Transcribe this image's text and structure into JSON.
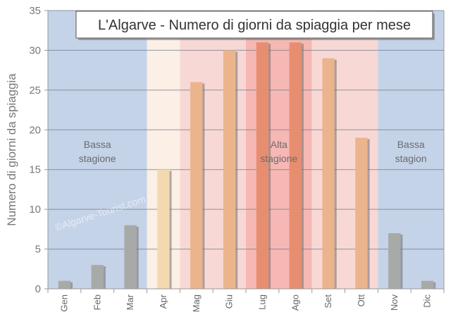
{
  "chart_data": {
    "type": "bar",
    "title": "L'Algarve - Numero di giorni da spiaggia per mese",
    "ylabel": "Numero di giorni da spiaggia",
    "xlabel": "",
    "ylim": [
      0,
      35
    ],
    "yticks": [
      0,
      5,
      10,
      15,
      20,
      25,
      30,
      35
    ],
    "grid": true,
    "categories": [
      "Gen",
      "Feb",
      "Mar",
      "Apr",
      "Mag",
      "Giu",
      "Lug",
      "Ago",
      "Set",
      "Ott",
      "Nov",
      "Dic"
    ],
    "values": [
      1,
      3,
      8,
      15,
      26,
      30,
      31,
      31,
      29,
      19,
      7,
      1
    ],
    "bar_colors": [
      "#a8aaa8",
      "#a8aaa8",
      "#a8aaa8",
      "#f2d9b0",
      "#ebb48c",
      "#ebb48c",
      "#e88e70",
      "#e88e70",
      "#ebb48c",
      "#ebb48c",
      "#a8aaa8",
      "#a8aaa8"
    ],
    "regions": [
      {
        "from": 0,
        "to": 3,
        "color": "#c5d3e8",
        "label": [
          "Bassa",
          "stagione"
        ]
      },
      {
        "from": 3,
        "to": 4,
        "color": "#fbefe6",
        "label": []
      },
      {
        "from": 4,
        "to": 6,
        "color": "#f8d8d4",
        "label": []
      },
      {
        "from": 6,
        "to": 8,
        "color": "#f6b8b4",
        "label": [
          "Alta",
          "stagione"
        ]
      },
      {
        "from": 8,
        "to": 10,
        "color": "#f8d8d4",
        "label": []
      },
      {
        "from": 10,
        "to": 12,
        "color": "#c5d3e8",
        "label": [
          "Bassa",
          "stagion"
        ]
      }
    ],
    "watermark": "©Algarve-Tourist.com"
  }
}
